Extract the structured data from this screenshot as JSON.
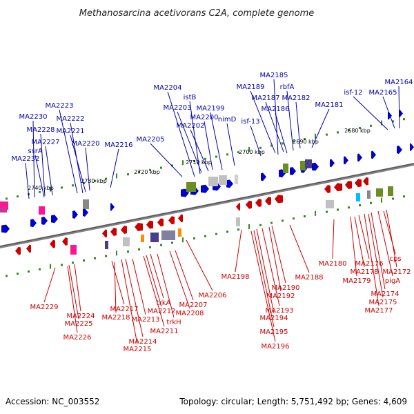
{
  "title": "Methanosarcina acetivorans C2A, complete genome",
  "footer": {
    "accession": "Accession: NC_003552",
    "summary": "Topology: circular; Length: 5,751,492 bp; Genes: 4,609"
  },
  "colors": {
    "forward": "#0000cc",
    "reverse": "#cc0000",
    "label_forward": "#0000aa",
    "label_reverse": "#cc0000",
    "backbone": "#808080",
    "tick": "#2e8b22"
  },
  "ticks": [
    "2680 kbp",
    "2690 kbp",
    "2700 kbp",
    "2710 kbp",
    "2720 kbp",
    "2730 kbp",
    "2740 kbp"
  ],
  "forward_labels": [
    "MA2185",
    "MA2164",
    "rbfA",
    "MA2189",
    "MA2187",
    "MA2182",
    "isf-12",
    "MA2165",
    "MA2204",
    "istB",
    "MA2203",
    "MA2199",
    "MA2186",
    "MA2223",
    "MA2181",
    "MA2230",
    "MA2222",
    "MA2200",
    "nimD",
    "MA2202",
    "isf-13",
    "MA2228",
    "MA2221",
    "MA2227",
    "MA2220",
    "MA2216",
    "MA2205",
    "ssrA",
    "MA2232"
  ],
  "reverse_labels": [
    "MA2180",
    "MA2176",
    "cps",
    "MA2178",
    "MA2172",
    "MA2179",
    "pigA",
    "MA2174",
    "MA2175",
    "MA2177",
    "MA2198",
    "MA2188",
    "MA2190",
    "MA2206",
    "MA2192",
    "MA2193",
    "MA2194",
    "MA2195",
    "MA2196",
    "MA2229",
    "MA2224",
    "MA2225",
    "MA2226",
    "MA2217",
    "trkA",
    "MA2207",
    "MA2218",
    "MA2212",
    "MA2208",
    "MA2213",
    "trkH",
    "MA2211",
    "MA2214",
    "MA2215"
  ]
}
